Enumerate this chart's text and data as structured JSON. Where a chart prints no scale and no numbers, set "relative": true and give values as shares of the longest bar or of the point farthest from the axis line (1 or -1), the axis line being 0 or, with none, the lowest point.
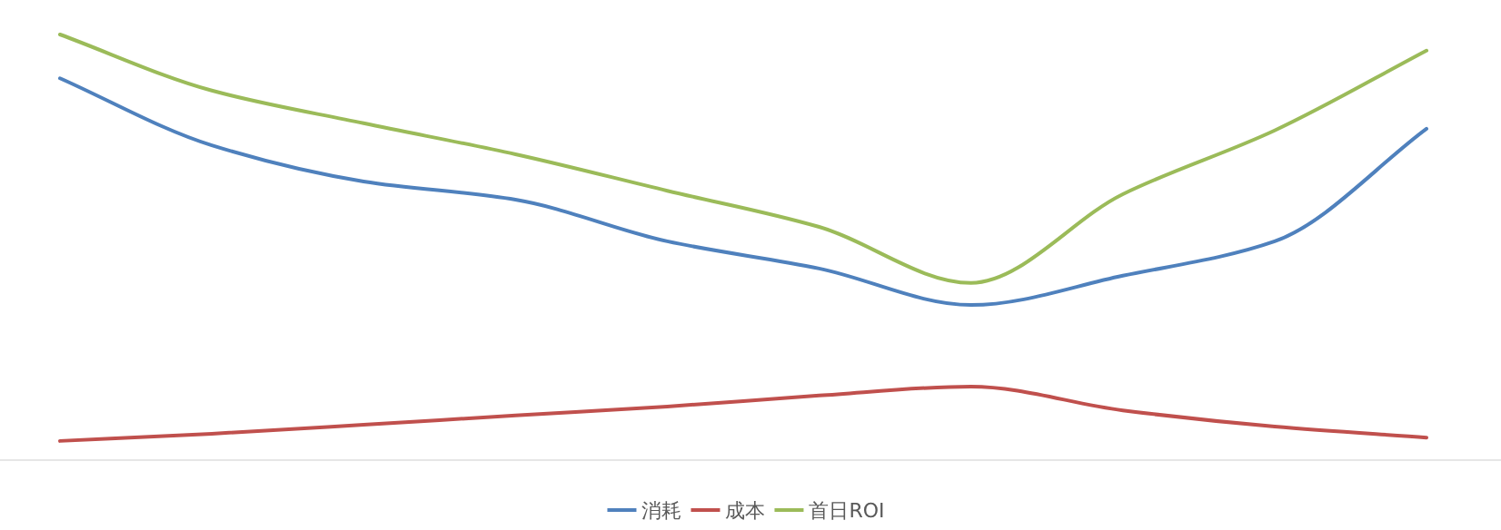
{
  "chart_data": {
    "type": "line",
    "relative": true,
    "legend": "bottom",
    "categories": [
      null,
      null,
      null,
      null,
      null,
      null,
      null,
      null,
      null,
      null
    ],
    "series": [
      {
        "name": "消耗",
        "color": "#4f81bd",
        "values": [
          0.897,
          0.739,
          0.654,
          0.611,
          0.513,
          0.449,
          0.363,
          0.432,
          0.513,
          0.778
        ]
      },
      {
        "name": "成本",
        "color": "#c0504d",
        "values": [
          0.043,
          0.06,
          0.081,
          0.103,
          0.124,
          0.15,
          0.171,
          0.115,
          0.077,
          0.051
        ]
      },
      {
        "name": "首日ROI",
        "color": "#9bbb59",
        "values": [
          1,
          0.868,
          0.791,
          0.718,
          0.632,
          0.547,
          0.415,
          0.624,
          0.774,
          0.962
        ]
      }
    ]
  }
}
